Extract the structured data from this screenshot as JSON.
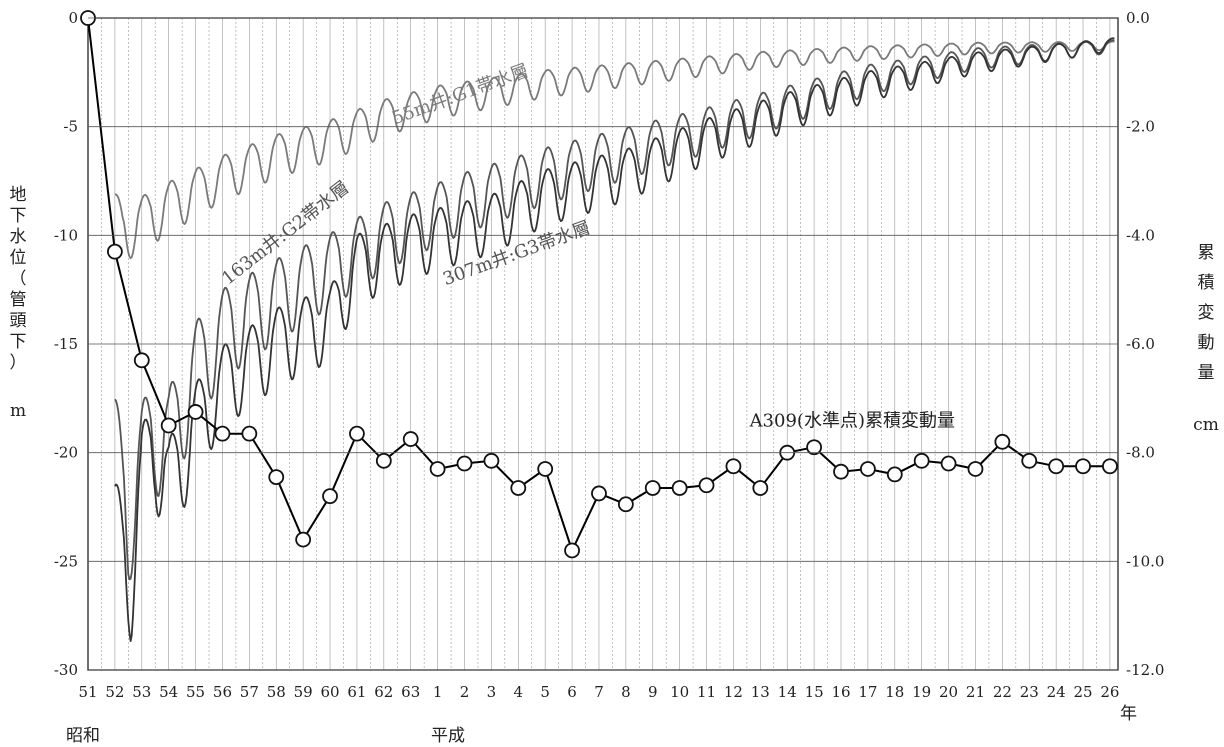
{
  "chart_data": {
    "type": "line",
    "y_left": {
      "label_chars": [
        "地",
        "下",
        "水",
        "位",
        "（",
        "管",
        "頭",
        "下",
        "）"
      ],
      "unit": "m",
      "ticks": [
        "0",
        "-5",
        "-10",
        "-15",
        "-20",
        "-25",
        "-30"
      ],
      "range": [
        -30,
        0
      ]
    },
    "y_right": {
      "label_chars": [
        "累",
        "積",
        "変",
        "動",
        "量"
      ],
      "unit": "cm",
      "ticks": [
        "0.0",
        "-2.0",
        "-4.0",
        "-6.0",
        "-8.0",
        "-10.0",
        "-12.0"
      ],
      "range": [
        -12.0,
        0.0
      ]
    },
    "x_axis": {
      "ticks": [
        "51",
        "52",
        "53",
        "54",
        "55",
        "56",
        "57",
        "58",
        "59",
        "60",
        "61",
        "62",
        "63",
        "1",
        "2",
        "3",
        "4",
        "5",
        "6",
        "7",
        "8",
        "9",
        "10",
        "11",
        "12",
        "13",
        "14",
        "15",
        "16",
        "17",
        "18",
        "19",
        "20",
        "21",
        "22",
        "23",
        "24",
        "25",
        "26"
      ],
      "era_labels": [
        "昭和",
        "平成"
      ],
      "unit": "年"
    },
    "grid": "vertical",
    "series": [
      {
        "name": "A309(水準点)累積変動量",
        "axis": "right",
        "color": "#000000",
        "marker": "circle",
        "x": [
          "51",
          "52",
          "53",
          "54",
          "55",
          "56",
          "57",
          "58",
          "59",
          "60",
          "61",
          "62",
          "63",
          "1",
          "2",
          "3",
          "4",
          "5",
          "6",
          "7",
          "8",
          "9",
          "10",
          "11",
          "12",
          "13",
          "14",
          "15",
          "16",
          "17",
          "18",
          "19",
          "20",
          "21",
          "22",
          "23",
          "24",
          "25",
          "26"
        ],
        "values": [
          0.0,
          -4.3,
          -6.3,
          -7.5,
          -7.25,
          -7.65,
          -7.65,
          -8.45,
          -9.6,
          -8.8,
          -7.65,
          -8.15,
          -7.75,
          -8.3,
          -8.2,
          -8.15,
          -8.65,
          -8.3,
          -9.8,
          -8.75,
          -8.95,
          -8.65,
          -8.65,
          -8.6,
          -8.25,
          -8.65,
          -8.0,
          -7.9,
          -8.35,
          -8.3,
          -8.4,
          -8.15,
          -8.2,
          -8.3,
          -7.8,
          -8.15,
          -8.25,
          -8.25,
          -8.25
        ]
      },
      {
        "name": "55m井:G1帯水層",
        "axis": "left",
        "color": "#7a7a7a",
        "x_start": 52.0,
        "x_end": 89.2,
        "base_keys": [
          [
            52.0,
            -8.8
          ],
          [
            52.3,
            -9.5
          ],
          [
            54.0,
            -8.3
          ],
          [
            56.0,
            -7.0
          ],
          [
            58.0,
            -6.0
          ],
          [
            60.0,
            -5.3
          ],
          [
            62.0,
            -4.3
          ],
          [
            64.0,
            -3.6
          ],
          [
            68.0,
            -2.8
          ],
          [
            72.0,
            -2.3
          ],
          [
            76.0,
            -1.8
          ],
          [
            80.0,
            -1.5
          ],
          [
            84.0,
            -1.3
          ],
          [
            89.2,
            -1.2
          ]
        ],
        "amp_keys": [
          [
            52.0,
            1.4
          ],
          [
            56.0,
            1.1
          ],
          [
            60.0,
            1.0
          ],
          [
            64.0,
            0.8
          ],
          [
            70.0,
            0.6
          ],
          [
            76.0,
            0.4
          ],
          [
            82.0,
            0.3
          ],
          [
            89.2,
            0.2
          ]
        ]
      },
      {
        "name": "163m井:G2帯水層",
        "axis": "left",
        "color": "#555555",
        "x_start": 52.0,
        "x_end": 89.2,
        "base_keys": [
          [
            52.0,
            -19.0
          ],
          [
            52.5,
            -22.5
          ],
          [
            53.0,
            -19.5
          ],
          [
            53.5,
            -18.2
          ],
          [
            54.0,
            -18.8
          ],
          [
            55.0,
            -15.5
          ],
          [
            56.0,
            -13.8
          ],
          [
            58.0,
            -12.3
          ],
          [
            60.0,
            -11.0
          ],
          [
            62.0,
            -9.5
          ],
          [
            65.0,
            -8.0
          ],
          [
            68.0,
            -6.8
          ],
          [
            71.0,
            -5.8
          ],
          [
            74.0,
            -4.8
          ],
          [
            77.0,
            -3.7
          ],
          [
            80.0,
            -2.6
          ],
          [
            84.0,
            -1.7
          ],
          [
            89.2,
            -1.2
          ]
        ],
        "amp_keys": [
          [
            52.0,
            3.0
          ],
          [
            54.0,
            2.8
          ],
          [
            56.0,
            2.2
          ],
          [
            60.0,
            1.8
          ],
          [
            64.0,
            1.5
          ],
          [
            70.0,
            1.3
          ],
          [
            76.0,
            1.0
          ],
          [
            82.0,
            0.6
          ],
          [
            89.2,
            0.3
          ]
        ]
      },
      {
        "name": "307m井:G3帯水層",
        "axis": "left",
        "color": "#333333",
        "x_start": 52.0,
        "x_end": 89.2,
        "base_keys": [
          [
            52.0,
            -23.0
          ],
          [
            52.6,
            -25.0
          ],
          [
            53.0,
            -20.5
          ],
          [
            53.5,
            -19.0
          ],
          [
            54.0,
            -21.0
          ],
          [
            55.0,
            -18.2
          ],
          [
            56.0,
            -16.3
          ],
          [
            58.0,
            -14.5
          ],
          [
            60.0,
            -13.5
          ],
          [
            61.0,
            -11.0
          ],
          [
            63.0,
            -10.0
          ],
          [
            66.0,
            -9.0
          ],
          [
            68.0,
            -7.8
          ],
          [
            71.0,
            -6.8
          ],
          [
            74.0,
            -5.3
          ],
          [
            77.0,
            -4.0
          ],
          [
            80.0,
            -2.9
          ],
          [
            84.0,
            -1.9
          ],
          [
            89.2,
            -1.1
          ]
        ],
        "amp_keys": [
          [
            52.0,
            3.0
          ],
          [
            54.0,
            2.6
          ],
          [
            56.0,
            2.0
          ],
          [
            60.0,
            1.8
          ],
          [
            64.0,
            1.5
          ],
          [
            70.0,
            1.3
          ],
          [
            76.0,
            1.0
          ],
          [
            82.0,
            0.6
          ],
          [
            89.2,
            0.3
          ]
        ]
      }
    ]
  },
  "annotations": [
    {
      "text": "55m井:G1帯水層",
      "x": 62.4,
      "y": -4.9,
      "rotate": -20,
      "color": "#7a7a7a"
    },
    {
      "text": "163m井:G2帯水層",
      "x": 56.2,
      "y": -12.3,
      "rotate": -38,
      "color": "#555555"
    },
    {
      "text": "307m井:G3帯水層",
      "x": 64.3,
      "y": -12.3,
      "rotate": -20,
      "color": "#555555"
    },
    {
      "text": "A309(水準点)累積変動量",
      "x": 75.6,
      "y": -18.8,
      "rotate": 0,
      "color": "#222222"
    }
  ]
}
